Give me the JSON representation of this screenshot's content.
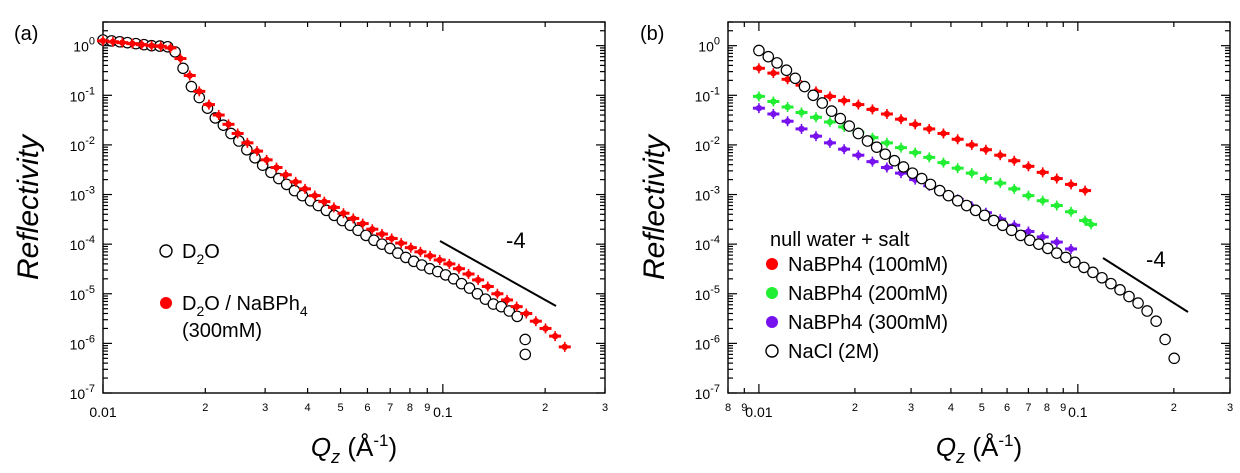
{
  "chart_data": [
    {
      "type": "scatter",
      "panel_label": "(a)",
      "ylabel": "Reflectivity",
      "xlabel": "Q_z (Å^-1)",
      "xscale": "log",
      "yscale": "log",
      "xlim": [
        0.01,
        0.3
      ],
      "ylim": [
        1e-07,
        3
      ],
      "x_ticks": [
        "0.01",
        "2",
        "3",
        "4",
        "5",
        "6",
        "7",
        "8",
        "9",
        "0.1",
        "2",
        "3"
      ],
      "y_ticks": [
        "10^0",
        "10^-1",
        "10^-2",
        "10^-3",
        "10^-4",
        "10^-5",
        "10^-6",
        "10^-7"
      ],
      "slope_annotation": "-4",
      "legend_position": "bottom-left",
      "series": [
        {
          "name": "D2O",
          "marker": "open-circle",
          "color": "#000000",
          "x": [
            0.01,
            0.0106,
            0.0112,
            0.0118,
            0.0125,
            0.0132,
            0.0139,
            0.0147,
            0.0155,
            0.0163,
            0.0172,
            0.0182,
            0.0192,
            0.0203,
            0.0214,
            0.0226,
            0.0238,
            0.0251,
            0.0265,
            0.028,
            0.0295,
            0.0312,
            0.0329,
            0.0347,
            0.0366,
            0.0386,
            0.0408,
            0.043,
            0.0454,
            0.0479,
            0.0506,
            0.0534,
            0.0563,
            0.0594,
            0.0627,
            0.0662,
            0.0699,
            0.0737,
            0.0778,
            0.0821,
            0.0867,
            0.0915,
            0.0966,
            0.1019,
            0.1076,
            0.1135,
            0.1198,
            0.1264,
            0.1334,
            0.1408,
            0.1486,
            0.1568,
            0.1655,
            0.1747,
            0.1748
          ],
          "y": [
            1.3,
            1.25,
            1.2,
            1.15,
            1.1,
            1.05,
            1.0,
            0.98,
            0.95,
            0.75,
            0.35,
            0.15,
            0.09,
            0.055,
            0.035,
            0.025,
            0.017,
            0.012,
            0.008,
            0.0055,
            0.0039,
            0.0028,
            0.0021,
            0.0016,
            0.0012,
            0.00095,
            0.00075,
            0.0006,
            0.00048,
            0.00038,
            0.0003,
            0.00024,
            0.00019,
            0.00015,
            0.00012,
            0.0001,
            8.2e-05,
            6.6e-05,
            5.4e-05,
            4.5e-05,
            3.8e-05,
            3.2e-05,
            2.8e-05,
            2.4e-05,
            2e-05,
            1.6e-05,
            1.3e-05,
            1e-05,
            7.8e-06,
            6.2e-06,
            5.5e-06,
            4.5e-06,
            3.5e-06,
            1.2e-06,
            6e-07
          ]
        },
        {
          "name": "D2O / NaBPh4 (300mM)",
          "marker": "filled-circle",
          "color": "#ff0000",
          "x": [
            0.01,
            0.0107,
            0.0114,
            0.0122,
            0.013,
            0.0139,
            0.0148,
            0.0158,
            0.0169,
            0.018,
            0.0192,
            0.0205,
            0.0219,
            0.0234,
            0.0249,
            0.0266,
            0.0284,
            0.0303,
            0.0324,
            0.0345,
            0.0369,
            0.0393,
            0.042,
            0.0448,
            0.0478,
            0.051,
            0.0545,
            0.0581,
            0.062,
            0.0662,
            0.0707,
            0.0754,
            0.0805,
            0.0859,
            0.0917,
            0.0979,
            0.1045,
            0.1115,
            0.119,
            0.127,
            0.1356,
            0.1447,
            0.1545,
            0.1649,
            0.176,
            0.1878,
            0.2005,
            0.214,
            0.2284
          ],
          "y": [
            1.25,
            1.2,
            1.15,
            1.1,
            1.05,
            1.0,
            0.97,
            0.9,
            0.55,
            0.25,
            0.12,
            0.065,
            0.04,
            0.026,
            0.017,
            0.011,
            0.0075,
            0.005,
            0.0035,
            0.0025,
            0.0018,
            0.0013,
            0.00095,
            0.00072,
            0.00055,
            0.00042,
            0.00033,
            0.00026,
            0.0002,
            0.00016,
            0.00013,
            0.000105,
            8.5e-05,
            7e-05,
            5.8e-05,
            4.8e-05,
            4e-05,
            3.2e-05,
            2.5e-05,
            1.9e-05,
            1.4e-05,
            1e-05,
            7.5e-06,
            5.5e-06,
            4e-06,
            2.8e-06,
            2e-06,
            1.4e-06,
            8.5e-07
          ]
        }
      ]
    },
    {
      "type": "scatter",
      "panel_label": "(b)",
      "ylabel": "Reflectivity",
      "xlabel": "Q_z (Å^-1)",
      "xscale": "log",
      "yscale": "log",
      "xlim": [
        0.008,
        0.3
      ],
      "ylim": [
        1e-07,
        3
      ],
      "x_ticks": [
        "8",
        "9",
        "0.01",
        "2",
        "3",
        "4",
        "5",
        "6",
        "7",
        "8",
        "9",
        "0.1",
        "2",
        "3"
      ],
      "y_ticks": [
        "10^0",
        "10^-1",
        "10^-2",
        "10^-3",
        "10^-4",
        "10^-5",
        "10^-6",
        "10^-7"
      ],
      "slope_annotation": "-4",
      "legend_title": "null water + salt",
      "legend_position": "bottom-left",
      "series": [
        {
          "name": "NaBPh4 (100mM)",
          "marker": "filled-circle",
          "color": "#ff0000",
          "x": [
            0.01,
            0.0111,
            0.0123,
            0.0136,
            0.0151,
            0.0167,
            0.0185,
            0.0205,
            0.0227,
            0.0252,
            0.0279,
            0.0309,
            0.0342,
            0.0379,
            0.042,
            0.0465,
            0.0515,
            0.0571,
            0.0632,
            0.07,
            0.0776,
            0.0859,
            0.0952,
            0.1054
          ],
          "y": [
            0.35,
            0.28,
            0.21,
            0.16,
            0.12,
            0.095,
            0.078,
            0.065,
            0.052,
            0.042,
            0.033,
            0.026,
            0.021,
            0.017,
            0.013,
            0.01,
            0.008,
            0.0062,
            0.0048,
            0.0037,
            0.0028,
            0.0021,
            0.0016,
            0.0012
          ]
        },
        {
          "name": "NaBPh4 (200mM)",
          "marker": "filled-circle",
          "color": "#22ee33",
          "x": [
            0.01,
            0.0111,
            0.0123,
            0.0136,
            0.0151,
            0.0167,
            0.0185,
            0.0205,
            0.0227,
            0.0252,
            0.0279,
            0.0309,
            0.0342,
            0.0379,
            0.042,
            0.0465,
            0.0515,
            0.0571,
            0.0632,
            0.07,
            0.0776,
            0.0859,
            0.0952,
            0.1054,
            0.11
          ],
          "y": [
            0.095,
            0.075,
            0.058,
            0.045,
            0.036,
            0.029,
            0.023,
            0.018,
            0.014,
            0.011,
            0.0088,
            0.007,
            0.0056,
            0.0044,
            0.0034,
            0.0027,
            0.0021,
            0.0017,
            0.0013,
            0.00095,
            0.00075,
            0.0006,
            0.00045,
            0.0003,
            0.00025
          ]
        },
        {
          "name": "NaBPh4 (300mM)",
          "marker": "filled-circle",
          "color": "#7711ee",
          "x": [
            0.01,
            0.0111,
            0.0123,
            0.0136,
            0.0151,
            0.0167,
            0.0185,
            0.0205,
            0.0227,
            0.0252,
            0.0279,
            0.0309,
            0.0342,
            0.0379,
            0.042,
            0.0465,
            0.0515,
            0.0571,
            0.0632,
            0.07,
            0.0776,
            0.0859,
            0.0952
          ],
          "y": [
            0.055,
            0.042,
            0.03,
            0.021,
            0.015,
            0.011,
            0.0082,
            0.0062,
            0.0046,
            0.0035,
            0.0027,
            0.002,
            0.0015,
            0.0011,
            0.0008,
            0.00058,
            0.00043,
            0.00032,
            0.00024,
            0.00018,
            0.00014,
            0.00011,
            8e-05
          ]
        },
        {
          "name": "NaCl (2M)",
          "marker": "open-circle",
          "color": "#000000",
          "x": [
            0.01,
            0.0107,
            0.0114,
            0.0122,
            0.013,
            0.0139,
            0.0148,
            0.0158,
            0.0169,
            0.018,
            0.0192,
            0.0205,
            0.0219,
            0.0234,
            0.0249,
            0.0266,
            0.0284,
            0.0303,
            0.0324,
            0.0345,
            0.0369,
            0.0393,
            0.042,
            0.0448,
            0.0478,
            0.051,
            0.0545,
            0.0581,
            0.062,
            0.0662,
            0.0707,
            0.0754,
            0.0805,
            0.0859,
            0.0917,
            0.0979,
            0.1045,
            0.1115,
            0.119,
            0.127,
            0.1356,
            0.1447,
            0.1545,
            0.1649,
            0.176,
            0.1878,
            0.2005
          ],
          "y": [
            0.8,
            0.6,
            0.45,
            0.32,
            0.22,
            0.15,
            0.1,
            0.07,
            0.048,
            0.034,
            0.024,
            0.017,
            0.012,
            0.009,
            0.0065,
            0.0048,
            0.0036,
            0.0027,
            0.0021,
            0.0016,
            0.0012,
            0.00095,
            0.00075,
            0.0006,
            0.00048,
            0.00038,
            0.0003,
            0.00024,
            0.00019,
            0.00015,
            0.00012,
            0.0001,
            8.2e-05,
            6.6e-05,
            5.4e-05,
            4.3e-05,
            3.4e-05,
            2.7e-05,
            2.1e-05,
            1.6e-05,
            1.2e-05,
            8.8e-06,
            6.5e-06,
            4.5e-06,
            2.8e-06,
            1.2e-06,
            5e-07
          ]
        }
      ]
    }
  ]
}
